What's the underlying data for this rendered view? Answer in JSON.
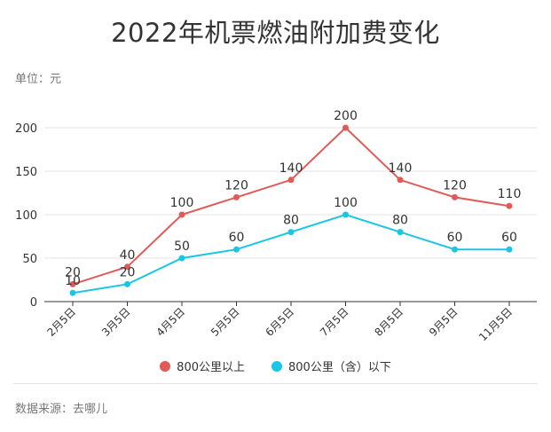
{
  "title": "2022年机票燃油附加费变化",
  "unit_label": "单位：元",
  "source_label": "数据来源：去哪儿",
  "chart_data": {
    "type": "line",
    "title": "2022年机票燃油附加费变化",
    "categories": [
      "2月5日",
      "3月5日",
      "4月5日",
      "5月5日",
      "6月5日",
      "7月5日",
      "8月5日",
      "9月5日",
      "11月5日"
    ],
    "series": [
      {
        "name": "800公里以上",
        "color": "#e05a57",
        "values": [
          20,
          40,
          100,
          120,
          140,
          200,
          140,
          120,
          110
        ]
      },
      {
        "name": "800公里（含）以下",
        "color": "#19c6e3",
        "values": [
          10,
          20,
          50,
          60,
          80,
          100,
          80,
          60,
          60
        ]
      }
    ],
    "ylim": [
      0,
      200
    ],
    "yticks": [
      0,
      50,
      100,
      150,
      200
    ],
    "xlabel": "",
    "ylabel": "",
    "grid": true,
    "legend": "bottom"
  }
}
